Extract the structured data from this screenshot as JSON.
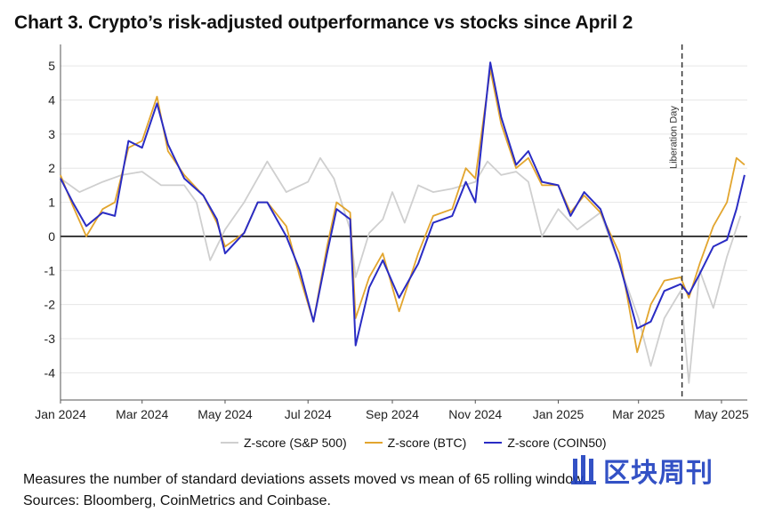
{
  "title": "Chart 3. Crypto’s risk-adjusted outperformance vs stocks since April 2",
  "note_line1": "Measures the number of standard deviations assets moved vs mean of 65 rolling window.",
  "note_line2": "Sources: Bloomberg, CoinMetrics and Coinbase.",
  "watermark_text": "区块周刊",
  "chart_data": {
    "type": "line",
    "ylim": [
      -4.8,
      5.5
    ],
    "yticks": [
      5,
      4,
      3,
      2,
      1,
      0,
      -1,
      -2,
      -3,
      -4
    ],
    "xlim": [
      "2024-01-01",
      "2025-05-20"
    ],
    "xticks": [
      {
        "date": "2024-01-01",
        "label": "Jan 2024"
      },
      {
        "date": "2024-03-01",
        "label": "Mar 2024"
      },
      {
        "date": "2024-05-01",
        "label": "May 2024"
      },
      {
        "date": "2024-07-01",
        "label": "Jul 2024"
      },
      {
        "date": "2024-09-01",
        "label": "Sep 2024"
      },
      {
        "date": "2024-11-01",
        "label": "Nov 2024"
      },
      {
        "date": "2025-01-01",
        "label": "Jan 2025"
      },
      {
        "date": "2025-03-01",
        "label": "Mar 2025"
      },
      {
        "date": "2025-05-01",
        "label": "May 2025"
      }
    ],
    "grid": "horizontal",
    "legend_position": "bottom",
    "annotation": {
      "date": "2025-04-02",
      "label": "Liberation Day"
    },
    "series": [
      {
        "name": "Z-score (S&P 500)",
        "color": "#cfcfcf",
        "points": [
          [
            "2024-01-01",
            1.7
          ],
          [
            "2024-01-15",
            1.3
          ],
          [
            "2024-02-01",
            1.6
          ],
          [
            "2024-02-15",
            1.8
          ],
          [
            "2024-03-01",
            1.9
          ],
          [
            "2024-03-15",
            1.5
          ],
          [
            "2024-04-01",
            1.5
          ],
          [
            "2024-04-10",
            1.0
          ],
          [
            "2024-04-20",
            -0.7
          ],
          [
            "2024-05-01",
            0.2
          ],
          [
            "2024-05-15",
            1.0
          ],
          [
            "2024-06-01",
            2.2
          ],
          [
            "2024-06-15",
            1.3
          ],
          [
            "2024-07-01",
            1.6
          ],
          [
            "2024-07-10",
            2.3
          ],
          [
            "2024-07-20",
            1.7
          ],
          [
            "2024-08-01",
            0.2
          ],
          [
            "2024-08-05",
            -1.2
          ],
          [
            "2024-08-15",
            0.1
          ],
          [
            "2024-08-25",
            0.5
          ],
          [
            "2024-09-01",
            1.3
          ],
          [
            "2024-09-10",
            0.4
          ],
          [
            "2024-09-20",
            1.5
          ],
          [
            "2024-10-01",
            1.3
          ],
          [
            "2024-10-15",
            1.4
          ],
          [
            "2024-11-01",
            1.6
          ],
          [
            "2024-11-10",
            2.2
          ],
          [
            "2024-11-20",
            1.8
          ],
          [
            "2024-12-01",
            1.9
          ],
          [
            "2024-12-10",
            1.6
          ],
          [
            "2024-12-20",
            0.0
          ],
          [
            "2025-01-01",
            0.8
          ],
          [
            "2025-01-15",
            0.2
          ],
          [
            "2025-02-01",
            0.7
          ],
          [
            "2025-02-20",
            -1.4
          ],
          [
            "2025-03-01",
            -2.4
          ],
          [
            "2025-03-10",
            -3.8
          ],
          [
            "2025-03-20",
            -2.4
          ],
          [
            "2025-04-01",
            -1.6
          ],
          [
            "2025-04-07",
            -4.3
          ],
          [
            "2025-04-15",
            -1.0
          ],
          [
            "2025-04-25",
            -2.1
          ],
          [
            "2025-05-05",
            -0.6
          ],
          [
            "2025-05-15",
            0.6
          ]
        ]
      },
      {
        "name": "Z-score (BTC)",
        "color": "#e2a52e",
        "points": [
          [
            "2024-01-01",
            1.8
          ],
          [
            "2024-01-10",
            0.9
          ],
          [
            "2024-01-20",
            0.0
          ],
          [
            "2024-02-01",
            0.8
          ],
          [
            "2024-02-10",
            1.0
          ],
          [
            "2024-02-20",
            2.6
          ],
          [
            "2024-03-01",
            2.8
          ],
          [
            "2024-03-12",
            4.1
          ],
          [
            "2024-03-20",
            2.5
          ],
          [
            "2024-04-01",
            1.8
          ],
          [
            "2024-04-15",
            1.2
          ],
          [
            "2024-04-25",
            0.4
          ],
          [
            "2024-05-01",
            -0.3
          ],
          [
            "2024-05-15",
            0.1
          ],
          [
            "2024-05-25",
            1.0
          ],
          [
            "2024-06-01",
            1.0
          ],
          [
            "2024-06-15",
            0.3
          ],
          [
            "2024-06-25",
            -1.2
          ],
          [
            "2024-07-05",
            -2.5
          ],
          [
            "2024-07-15",
            -0.3
          ],
          [
            "2024-07-22",
            1.0
          ],
          [
            "2024-08-01",
            0.7
          ],
          [
            "2024-08-05",
            -2.4
          ],
          [
            "2024-08-15",
            -1.2
          ],
          [
            "2024-08-25",
            -0.5
          ],
          [
            "2024-09-06",
            -2.2
          ],
          [
            "2024-09-20",
            -0.5
          ],
          [
            "2024-10-01",
            0.6
          ],
          [
            "2024-10-15",
            0.8
          ],
          [
            "2024-10-25",
            2.0
          ],
          [
            "2024-11-01",
            1.7
          ],
          [
            "2024-11-12",
            4.9
          ],
          [
            "2024-11-20",
            3.3
          ],
          [
            "2024-12-01",
            2.0
          ],
          [
            "2024-12-10",
            2.3
          ],
          [
            "2024-12-20",
            1.5
          ],
          [
            "2025-01-01",
            1.5
          ],
          [
            "2025-01-10",
            0.7
          ],
          [
            "2025-01-20",
            1.2
          ],
          [
            "2025-02-01",
            0.7
          ],
          [
            "2025-02-15",
            -0.5
          ],
          [
            "2025-02-28",
            -3.4
          ],
          [
            "2025-03-10",
            -2.0
          ],
          [
            "2025-03-20",
            -1.3
          ],
          [
            "2025-04-01",
            -1.2
          ],
          [
            "2025-04-07",
            -1.8
          ],
          [
            "2025-04-15",
            -0.8
          ],
          [
            "2025-04-25",
            0.3
          ],
          [
            "2025-05-05",
            1.0
          ],
          [
            "2025-05-12",
            2.3
          ],
          [
            "2025-05-18",
            2.1
          ]
        ]
      },
      {
        "name": "Z-score (COIN50)",
        "color": "#2a2cc4",
        "points": [
          [
            "2024-01-01",
            1.7
          ],
          [
            "2024-01-10",
            1.0
          ],
          [
            "2024-01-20",
            0.3
          ],
          [
            "2024-02-01",
            0.7
          ],
          [
            "2024-02-10",
            0.6
          ],
          [
            "2024-02-20",
            2.8
          ],
          [
            "2024-03-01",
            2.6
          ],
          [
            "2024-03-12",
            3.9
          ],
          [
            "2024-03-20",
            2.7
          ],
          [
            "2024-04-01",
            1.7
          ],
          [
            "2024-04-15",
            1.2
          ],
          [
            "2024-04-25",
            0.5
          ],
          [
            "2024-05-01",
            -0.5
          ],
          [
            "2024-05-15",
            0.1
          ],
          [
            "2024-05-25",
            1.0
          ],
          [
            "2024-06-01",
            1.0
          ],
          [
            "2024-06-15",
            0.0
          ],
          [
            "2024-06-25",
            -1.0
          ],
          [
            "2024-07-05",
            -2.5
          ],
          [
            "2024-07-15",
            -0.5
          ],
          [
            "2024-07-22",
            0.8
          ],
          [
            "2024-08-01",
            0.5
          ],
          [
            "2024-08-05",
            -3.2
          ],
          [
            "2024-08-15",
            -1.5
          ],
          [
            "2024-08-25",
            -0.7
          ],
          [
            "2024-09-06",
            -1.8
          ],
          [
            "2024-09-20",
            -0.8
          ],
          [
            "2024-10-01",
            0.4
          ],
          [
            "2024-10-15",
            0.6
          ],
          [
            "2024-10-25",
            1.6
          ],
          [
            "2024-11-01",
            1.0
          ],
          [
            "2024-11-12",
            5.1
          ],
          [
            "2024-11-20",
            3.5
          ],
          [
            "2024-12-01",
            2.1
          ],
          [
            "2024-12-10",
            2.5
          ],
          [
            "2024-12-20",
            1.6
          ],
          [
            "2025-01-01",
            1.5
          ],
          [
            "2025-01-10",
            0.6
          ],
          [
            "2025-01-20",
            1.3
          ],
          [
            "2025-02-01",
            0.8
          ],
          [
            "2025-02-15",
            -0.8
          ],
          [
            "2025-02-28",
            -2.7
          ],
          [
            "2025-03-10",
            -2.5
          ],
          [
            "2025-03-20",
            -1.6
          ],
          [
            "2025-04-01",
            -1.4
          ],
          [
            "2025-04-07",
            -1.7
          ],
          [
            "2025-04-15",
            -1.1
          ],
          [
            "2025-04-25",
            -0.3
          ],
          [
            "2025-05-05",
            -0.1
          ],
          [
            "2025-05-12",
            0.8
          ],
          [
            "2025-05-18",
            1.8
          ]
        ]
      }
    ]
  }
}
